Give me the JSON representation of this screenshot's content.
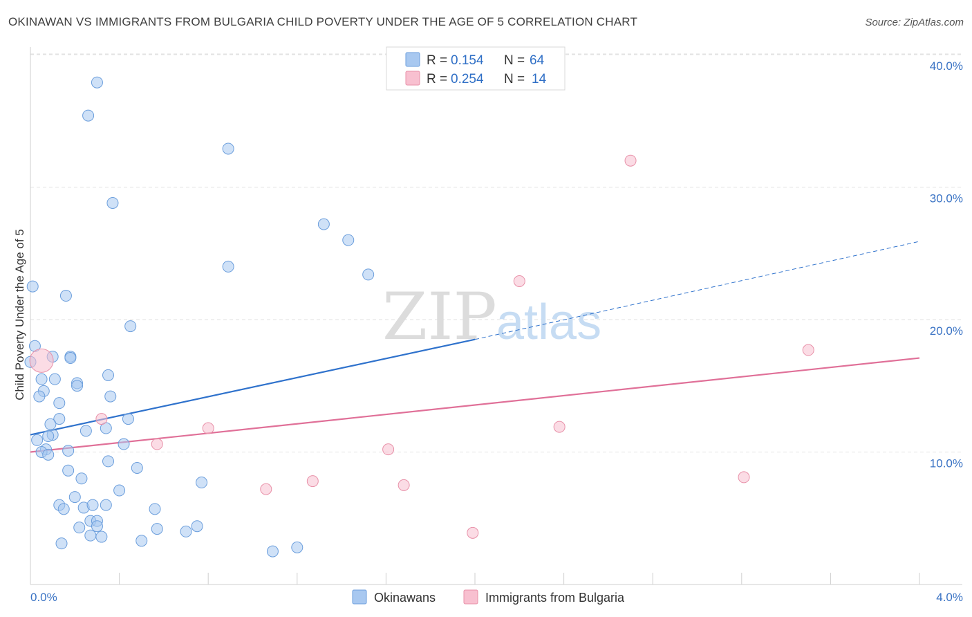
{
  "title": "OKINAWAN VS IMMIGRANTS FROM BULGARIA CHILD POVERTY UNDER THE AGE OF 5 CORRELATION CHART",
  "source": "Source: ZipAtlas.com",
  "watermark": {
    "zip": "ZIP",
    "atlas": "atlas"
  },
  "legend": {
    "r_label": "R =",
    "n_label": "N =",
    "rows": [
      {
        "r": "0.154",
        "n": "64",
        "color": "#a8c8f0",
        "stroke": "#6b9edc"
      },
      {
        "r": "0.254",
        "n": "14",
        "color": "#f8c0d0",
        "stroke": "#e890a8"
      }
    ]
  },
  "chart_data": {
    "type": "scatter",
    "title": "OKINAWAN VS IMMIGRANTS FROM BULGARIA CHILD POVERTY UNDER THE AGE OF 5 CORRELATION CHART",
    "xlabel": "",
    "ylabel": "Child Poverty Under the Age of 5",
    "xlim": [
      0,
      4.0
    ],
    "ylim": [
      0,
      41
    ],
    "x_tick_labels": [
      {
        "value": 0.0,
        "label": "0.0%"
      },
      {
        "value": 4.0,
        "label": "4.0%"
      }
    ],
    "y_tick_labels": [
      {
        "value": 10,
        "label": "10.0%"
      },
      {
        "value": 20,
        "label": "20.0%"
      },
      {
        "value": 30,
        "label": "30.0%"
      },
      {
        "value": 40,
        "label": "40.0%"
      }
    ],
    "grid": true,
    "series": [
      {
        "name": "Okinawans",
        "color": "#a8c8f0",
        "stroke": "#6b9edc",
        "line_color": "#2f72cc",
        "trend": {
          "x0": 0.0,
          "y0": 11.3,
          "x1": 2.0,
          "y1": 18.5,
          "dash_to_x": 4.0,
          "dash_to_y": 25.9
        },
        "points": [
          {
            "x": 0.3,
            "y": 37.9
          },
          {
            "x": 0.26,
            "y": 35.4
          },
          {
            "x": 0.89,
            "y": 32.9
          },
          {
            "x": 0.37,
            "y": 28.8
          },
          {
            "x": 1.32,
            "y": 27.2
          },
          {
            "x": 1.43,
            "y": 26.0
          },
          {
            "x": 0.89,
            "y": 24.0
          },
          {
            "x": 1.52,
            "y": 23.4
          },
          {
            "x": 0.01,
            "y": 22.5
          },
          {
            "x": 0.16,
            "y": 21.8
          },
          {
            "x": 0.45,
            "y": 19.5
          },
          {
            "x": 0.02,
            "y": 18.0
          },
          {
            "x": 0.1,
            "y": 17.2
          },
          {
            "x": 0.18,
            "y": 17.2
          },
          {
            "x": 0.18,
            "y": 17.1
          },
          {
            "x": 0.0,
            "y": 16.8
          },
          {
            "x": 0.05,
            "y": 15.5
          },
          {
            "x": 0.11,
            "y": 15.5
          },
          {
            "x": 0.35,
            "y": 15.8
          },
          {
            "x": 0.21,
            "y": 15.2
          },
          {
            "x": 0.21,
            "y": 15.0
          },
          {
            "x": 0.06,
            "y": 14.6
          },
          {
            "x": 0.04,
            "y": 14.2
          },
          {
            "x": 0.36,
            "y": 14.2
          },
          {
            "x": 0.13,
            "y": 13.7
          },
          {
            "x": 0.13,
            "y": 12.5
          },
          {
            "x": 0.44,
            "y": 12.5
          },
          {
            "x": 0.09,
            "y": 12.1
          },
          {
            "x": 0.25,
            "y": 11.6
          },
          {
            "x": 0.34,
            "y": 11.8
          },
          {
            "x": 0.1,
            "y": 11.3
          },
          {
            "x": 0.08,
            "y": 11.2
          },
          {
            "x": 0.03,
            "y": 10.9
          },
          {
            "x": 0.42,
            "y": 10.6
          },
          {
            "x": 0.07,
            "y": 10.2
          },
          {
            "x": 0.05,
            "y": 10.0
          },
          {
            "x": 0.17,
            "y": 10.1
          },
          {
            "x": 0.08,
            "y": 9.8
          },
          {
            "x": 0.35,
            "y": 9.3
          },
          {
            "x": 0.48,
            "y": 8.8
          },
          {
            "x": 0.17,
            "y": 8.6
          },
          {
            "x": 0.23,
            "y": 8.0
          },
          {
            "x": 0.77,
            "y": 7.7
          },
          {
            "x": 0.4,
            "y": 7.1
          },
          {
            "x": 0.2,
            "y": 6.6
          },
          {
            "x": 0.13,
            "y": 6.0
          },
          {
            "x": 0.34,
            "y": 6.0
          },
          {
            "x": 0.15,
            "y": 5.7
          },
          {
            "x": 0.24,
            "y": 5.8
          },
          {
            "x": 0.28,
            "y": 6.0
          },
          {
            "x": 0.56,
            "y": 5.7
          },
          {
            "x": 0.27,
            "y": 4.8
          },
          {
            "x": 0.3,
            "y": 4.8
          },
          {
            "x": 0.3,
            "y": 4.4
          },
          {
            "x": 0.22,
            "y": 4.3
          },
          {
            "x": 0.57,
            "y": 4.2
          },
          {
            "x": 0.75,
            "y": 4.4
          },
          {
            "x": 0.7,
            "y": 4.0
          },
          {
            "x": 0.27,
            "y": 3.7
          },
          {
            "x": 0.32,
            "y": 3.6
          },
          {
            "x": 0.5,
            "y": 3.3
          },
          {
            "x": 0.14,
            "y": 3.1
          },
          {
            "x": 1.2,
            "y": 2.8
          },
          {
            "x": 1.09,
            "y": 2.5
          }
        ]
      },
      {
        "name": "Immigrants from Bulgaria",
        "color": "#f8c0d0",
        "stroke": "#e890a8",
        "line_color": "#e07098",
        "trend": {
          "x0": 0.0,
          "y0": 10.0,
          "x1": 4.0,
          "y1": 17.1
        },
        "points": [
          {
            "x": 2.7,
            "y": 32.0
          },
          {
            "x": 2.2,
            "y": 22.9
          },
          {
            "x": 3.5,
            "y": 17.7
          },
          {
            "x": 0.05,
            "y": 16.9,
            "big": true
          },
          {
            "x": 0.32,
            "y": 12.5
          },
          {
            "x": 0.8,
            "y": 11.8
          },
          {
            "x": 2.38,
            "y": 11.9
          },
          {
            "x": 0.57,
            "y": 10.6
          },
          {
            "x": 1.61,
            "y": 10.2
          },
          {
            "x": 1.06,
            "y": 7.2
          },
          {
            "x": 1.27,
            "y": 7.8
          },
          {
            "x": 1.68,
            "y": 7.5
          },
          {
            "x": 3.21,
            "y": 8.1
          },
          {
            "x": 1.99,
            "y": 3.9
          }
        ]
      }
    ]
  }
}
